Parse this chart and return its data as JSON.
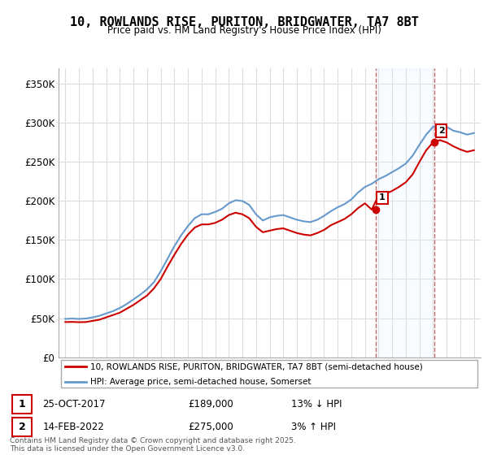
{
  "title": "10, ROWLANDS RISE, PURITON, BRIDGWATER, TA7 8BT",
  "subtitle": "Price paid vs. HM Land Registry's House Price Index (HPI)",
  "ylabel_ticks": [
    "£0",
    "£50K",
    "£100K",
    "£150K",
    "£200K",
    "£250K",
    "£300K",
    "£350K"
  ],
  "ytick_values": [
    0,
    50000,
    100000,
    150000,
    200000,
    250000,
    300000,
    350000
  ],
  "ylim": [
    0,
    370000
  ],
  "xlim_start": 1994.5,
  "xlim_end": 2025.5,
  "legend_line1": "10, ROWLANDS RISE, PURITON, BRIDGWATER, TA7 8BT (semi-detached house)",
  "legend_line2": "HPI: Average price, semi-detached house, Somerset",
  "sale1_date": "25-OCT-2017",
  "sale1_price": 189000,
  "sale1_pct": "13% ↓ HPI",
  "sale2_date": "14-FEB-2022",
  "sale2_price": 275000,
  "sale2_pct": "3% ↑ HPI",
  "footer": "Contains HM Land Registry data © Crown copyright and database right 2025.\nThis data is licensed under the Open Government Licence v3.0.",
  "line_color_red": "#cc0000",
  "line_color_blue": "#6699cc",
  "bg_color": "#ffffff",
  "grid_color": "#dddddd",
  "vline_color": "#cc6666",
  "span_color": "#ddeeff"
}
